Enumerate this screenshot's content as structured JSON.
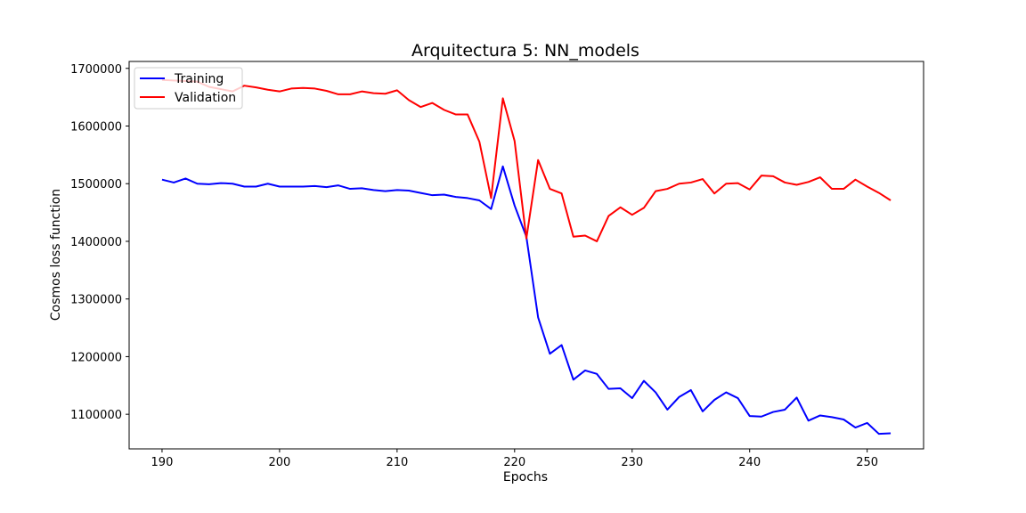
{
  "chart_data": {
    "type": "line",
    "title": "Arquitectura 5: NN_models",
    "xlabel": "Epochs",
    "ylabel": "Cosmos loss function",
    "xlim": [
      187.2,
      254.8
    ],
    "ylim": [
      1040000,
      1712000
    ],
    "xticks": [
      190,
      200,
      210,
      220,
      230,
      240,
      250
    ],
    "yticks": [
      1100000,
      1200000,
      1300000,
      1400000,
      1500000,
      1600000,
      1700000
    ],
    "legend_position": "upper-left",
    "grid": false,
    "x": [
      190,
      191,
      192,
      193,
      194,
      195,
      196,
      197,
      198,
      199,
      200,
      201,
      202,
      203,
      204,
      205,
      206,
      207,
      208,
      209,
      210,
      211,
      212,
      213,
      214,
      215,
      216,
      217,
      218,
      219,
      220,
      221,
      222,
      223,
      224,
      225,
      226,
      227,
      228,
      229,
      230,
      231,
      232,
      233,
      234,
      235,
      236,
      237,
      238,
      239,
      240,
      241,
      242,
      243,
      244,
      245,
      246,
      247,
      248,
      249,
      250,
      251,
      252
    ],
    "series": [
      {
        "name": "Training",
        "color": "#0000ff",
        "values": [
          1507000,
          1502000,
          1509000,
          1500000,
          1499000,
          1501000,
          1500000,
          1495000,
          1495000,
          1500000,
          1495000,
          1495000,
          1495000,
          1496000,
          1494000,
          1497000,
          1491000,
          1492000,
          1489000,
          1487000,
          1489000,
          1488000,
          1484000,
          1480000,
          1481000,
          1477000,
          1475000,
          1471000,
          1456000,
          1530000,
          1462000,
          1408000,
          1268000,
          1205000,
          1220000,
          1160000,
          1176000,
          1170000,
          1144000,
          1145000,
          1128000,
          1158000,
          1138000,
          1108000,
          1130000,
          1142000,
          1105000,
          1125000,
          1138000,
          1128000,
          1097000,
          1096000,
          1104000,
          1108000,
          1129000,
          1089000,
          1098000,
          1095000,
          1091000,
          1077000,
          1085000,
          1066000,
          1067000
        ]
      },
      {
        "name": "Validation",
        "color": "#ff0000",
        "values": [
          1680000,
          1679000,
          1678000,
          1677000,
          1668000,
          1664000,
          1660000,
          1670000,
          1667000,
          1663000,
          1660000,
          1665000,
          1666000,
          1665000,
          1661000,
          1655000,
          1655000,
          1660000,
          1657000,
          1656000,
          1662000,
          1645000,
          1633000,
          1640000,
          1628000,
          1620000,
          1620000,
          1573000,
          1475000,
          1648000,
          1574000,
          1405000,
          1541000,
          1491000,
          1483000,
          1408000,
          1410000,
          1400000,
          1444000,
          1459000,
          1446000,
          1458000,
          1487000,
          1491000,
          1500000,
          1502000,
          1508000,
          1483000,
          1500000,
          1501000,
          1490000,
          1514000,
          1513000,
          1502000,
          1498000,
          1503000,
          1511000,
          1491000,
          1491000,
          1507000,
          1495000,
          1484000,
          1471000
        ]
      }
    ]
  }
}
